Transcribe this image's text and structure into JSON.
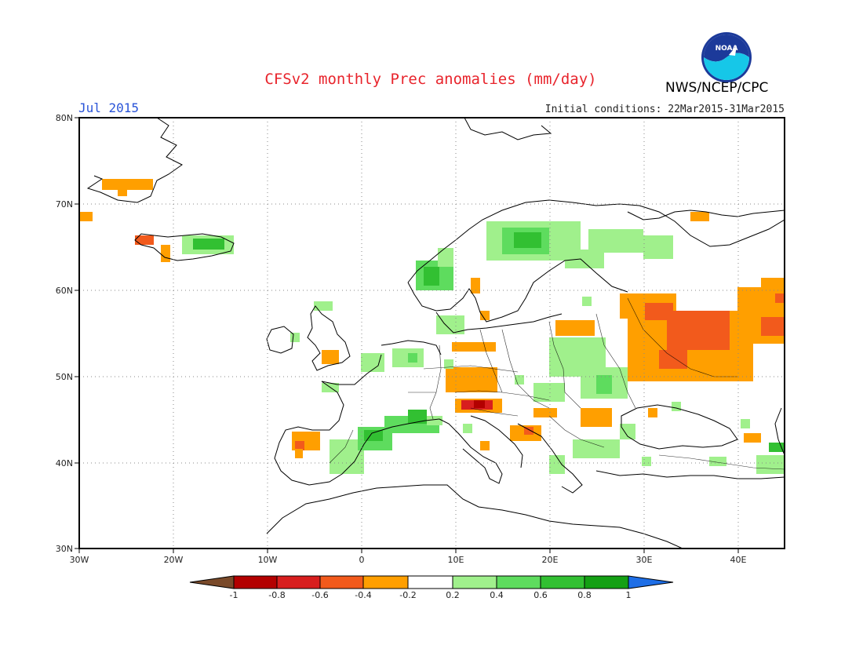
{
  "header": {
    "title": "CFSv2 monthly Prec anomalies (mm/day)",
    "period": "Jul 2015",
    "initial_conditions": "Initial conditions: 22Mar2015-31Mar2015",
    "agency": "NWS/NCEP/CPC",
    "logo_text": "NOAA"
  },
  "map": {
    "lon_range": [
      -30,
      45
    ],
    "lat_range": [
      30,
      80
    ],
    "lon_ticks": [
      "30W",
      "20W",
      "10W",
      "0",
      "10E",
      "20E",
      "30E",
      "40E"
    ],
    "lat_ticks": [
      "30N",
      "40N",
      "50N",
      "60N",
      "70N",
      "80N"
    ]
  },
  "colorbar": {
    "labels": [
      "-1",
      "-0.8",
      "-0.6",
      "-0.4",
      "-0.2",
      "0.2",
      "0.4",
      "0.6",
      "0.8",
      "1"
    ],
    "colors": {
      "below_min": "#7a4a2a",
      "-1_-0.8": "#b30000",
      "-0.8_-0.6": "#d81e1e",
      "-0.6_-0.4": "#f25a1c",
      "-0.4_-0.2": "#ff9f00",
      "-0.2_0.2": "#ffffff",
      "0.2_0.4": "#a0f08c",
      "0.4_0.6": "#5edc5e",
      "0.6_0.8": "#32c032",
      "0.8_1": "#14a014",
      "above_max": "#1e6ee6"
    }
  }
}
